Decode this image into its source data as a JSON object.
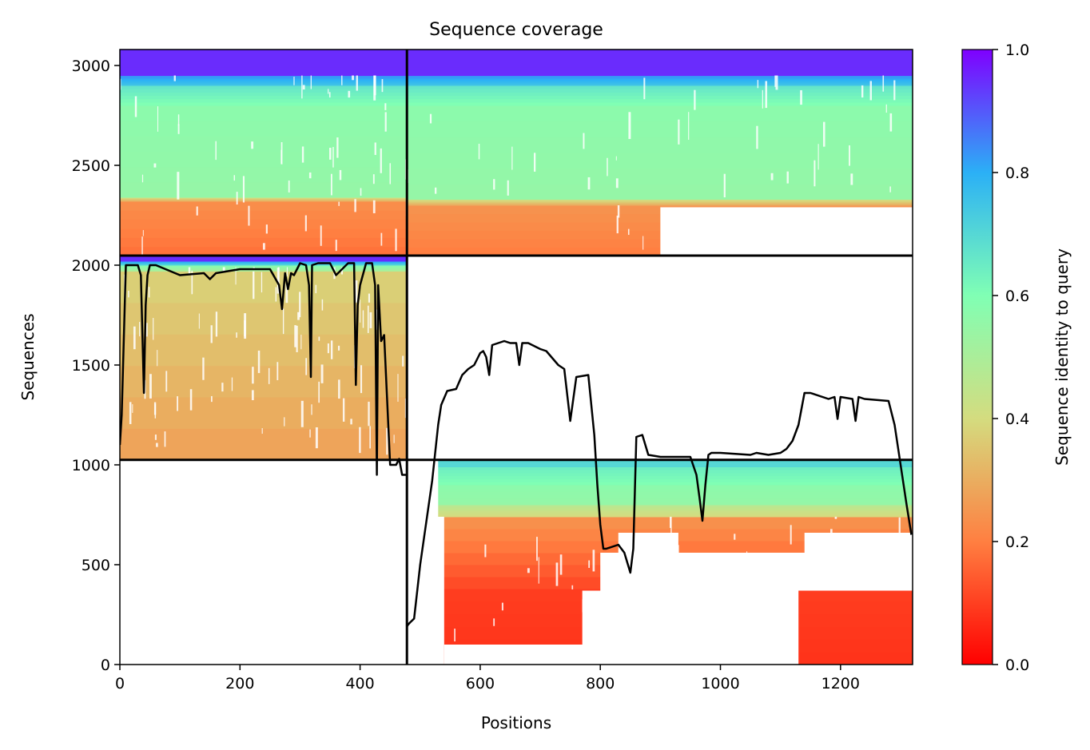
{
  "chart_data": {
    "type": "heatmap",
    "title": "Sequence coverage",
    "xlabel": "Positions",
    "ylabel": "Sequences",
    "xlim": [
      0,
      1320
    ],
    "ylim": [
      0,
      3080
    ],
    "x_ticks": [
      0,
      200,
      400,
      600,
      800,
      1000,
      1200
    ],
    "y_ticks": [
      0,
      500,
      1000,
      1500,
      2000,
      2500,
      3000
    ],
    "colorbar": {
      "label": "Sequence identity to query",
      "range": [
        0.0,
        1.0
      ],
      "ticks": [
        0.0,
        0.2,
        0.4,
        0.6,
        0.8,
        1.0
      ],
      "colormap": "rainbow_r",
      "colors": [
        "#ff0000",
        "#ff7f41",
        "#d4dc7f",
        "#80ffb4",
        "#2bb0f6",
        "#7f00ff"
      ]
    },
    "chain_boundaries": {
      "x": [
        478
      ],
      "y": [
        1025,
        2048
      ]
    },
    "regions": [
      {
        "x": [
          0,
          478
        ],
        "y": [
          2048,
          3080
        ],
        "identity_bands": [
          [
            2048,
            2320,
            0.18
          ],
          [
            2320,
            2340,
            0.3
          ],
          [
            2340,
            2800,
            0.55
          ],
          [
            2800,
            2900,
            0.6
          ],
          [
            2900,
            2950,
            0.75
          ],
          [
            2950,
            3080,
            0.95
          ]
        ]
      },
      {
        "x": [
          478,
          1320
        ],
        "y": [
          2048,
          3080
        ],
        "identity_bands": [
          [
            2048,
            2300,
            0.2
          ],
          [
            2300,
            2330,
            0.3
          ],
          [
            2330,
            2800,
            0.55
          ],
          [
            2800,
            2900,
            0.6
          ],
          [
            2900,
            2950,
            0.75
          ],
          [
            2950,
            3080,
            0.95
          ]
        ]
      },
      {
        "x": [
          0,
          478
        ],
        "y": [
          1025,
          2048
        ],
        "identity_bands": [
          [
            1025,
            1970,
            0.28
          ],
          [
            1970,
            2000,
            0.5
          ],
          [
            2000,
            2020,
            0.7
          ],
          [
            2020,
            2048,
            0.95
          ]
        ]
      },
      {
        "x": [
          478,
          1320
        ],
        "y": [
          0,
          1025
        ],
        "identity_bands": [
          [
            0,
            380,
            0.08
          ],
          [
            380,
            740,
            0.12
          ],
          [
            740,
            800,
            0.4
          ],
          [
            800,
            900,
            0.55
          ],
          [
            900,
            990,
            0.6
          ],
          [
            990,
            1025,
            0.7
          ]
        ]
      }
    ],
    "series": [
      {
        "color": "#000000",
        "x": [
          0,
          3,
          10,
          15,
          20,
          30,
          35,
          40,
          43,
          46,
          50,
          60,
          100,
          140,
          150,
          160,
          200,
          250,
          265,
          270,
          275,
          280,
          285,
          290,
          300,
          310,
          315,
          318,
          320,
          330,
          350,
          360,
          380,
          390,
          393,
          396,
          400,
          410,
          420,
          425,
          428,
          430,
          435,
          440,
          450,
          460,
          465,
          470,
          478,
          478,
          480,
          483,
          490,
          500,
          520,
          530,
          535,
          545,
          560,
          570,
          580,
          590,
          600,
          605,
          610,
          615,
          620,
          630,
          640,
          650,
          660,
          665,
          670,
          680,
          700,
          710,
          730,
          740,
          750,
          760,
          780,
          790,
          795,
          800,
          805,
          810,
          830,
          840,
          850,
          855,
          860,
          870,
          880,
          900,
          950,
          960,
          965,
          970,
          975,
          980,
          985,
          1000,
          1050,
          1060,
          1080,
          1100,
          1110,
          1120,
          1130,
          1140,
          1150,
          1180,
          1190,
          1195,
          1200,
          1220,
          1225,
          1230,
          1240,
          1280,
          1290,
          1300,
          1310,
          1318
        ],
        "y": [
          1100,
          1250,
          2000,
          2000,
          2000,
          2000,
          1950,
          1360,
          1800,
          1950,
          2000,
          2000,
          1950,
          1960,
          1930,
          1960,
          1980,
          1980,
          1900,
          1780,
          1960,
          1880,
          1960,
          1950,
          2010,
          2000,
          1900,
          1440,
          2000,
          2010,
          2010,
          1950,
          2010,
          2010,
          1400,
          1800,
          1900,
          2010,
          2010,
          1900,
          950,
          1900,
          1620,
          1650,
          1000,
          1000,
          1030,
          950,
          950,
          190,
          200,
          210,
          230,
          500,
          920,
          1200,
          1300,
          1370,
          1380,
          1450,
          1480,
          1500,
          1560,
          1570,
          1540,
          1450,
          1600,
          1610,
          1620,
          1610,
          1610,
          1500,
          1610,
          1610,
          1580,
          1570,
          1500,
          1480,
          1220,
          1440,
          1450,
          1150,
          900,
          700,
          580,
          580,
          600,
          560,
          460,
          580,
          1140,
          1150,
          1050,
          1040,
          1040,
          950,
          840,
          720,
          900,
          1050,
          1060,
          1060,
          1050,
          1060,
          1050,
          1060,
          1080,
          1120,
          1200,
          1360,
          1360,
          1330,
          1340,
          1230,
          1340,
          1330,
          1220,
          1340,
          1330,
          1320,
          1200,
          1000,
          800,
          650
        ]
      }
    ]
  }
}
